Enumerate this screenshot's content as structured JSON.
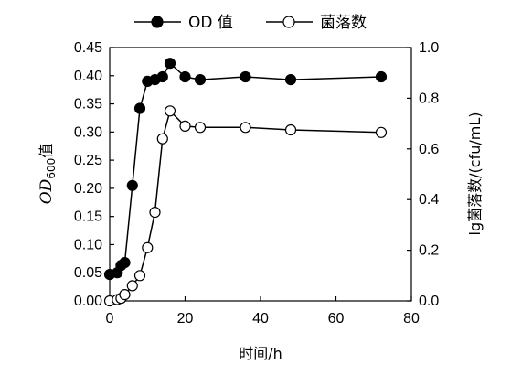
{
  "chart_data": {
    "type": "line",
    "xlabel": "时间/h",
    "ylabel_left": {
      "main": "OD",
      "sub": "600",
      "suffix": "值"
    },
    "ylabel_right": "lg菌落数/(cfu/mL)",
    "xlim": [
      0,
      80
    ],
    "x_ticks": [
      "0",
      "20",
      "40",
      "60",
      "80"
    ],
    "ylim_left": [
      0,
      0.45
    ],
    "y_ticks_left": [
      "0.00",
      "0.05",
      "0.10",
      "0.15",
      "0.20",
      "0.25",
      "0.30",
      "0.35",
      "0.40",
      "0.45"
    ],
    "ylim_right": [
      0,
      1.0
    ],
    "y_ticks_right": [
      "0.0",
      "0.2",
      "0.4",
      "0.6",
      "0.8",
      "1.0"
    ],
    "grid": false,
    "legend_position": "top-center",
    "series": [
      {
        "name": "OD 值",
        "axis": "left",
        "marker": "filled-circle",
        "x": [
          0,
          2,
          3,
          4,
          6,
          8,
          10,
          12,
          14,
          16,
          20,
          24,
          36,
          48,
          72
        ],
        "y": [
          0.047,
          0.05,
          0.063,
          0.068,
          0.205,
          0.342,
          0.39,
          0.393,
          0.398,
          0.422,
          0.398,
          0.393,
          0.398,
          0.393,
          0.398
        ]
      },
      {
        "name": "菌落数",
        "axis": "right",
        "marker": "open-circle",
        "x": [
          0,
          2,
          3,
          4,
          6,
          8,
          10,
          12,
          14,
          16,
          20,
          24,
          36,
          48,
          72
        ],
        "y": [
          0.0,
          0.005,
          0.01,
          0.025,
          0.06,
          0.1,
          0.21,
          0.35,
          0.64,
          0.75,
          0.69,
          0.685,
          0.685,
          0.675,
          0.665
        ]
      }
    ],
    "colors": {
      "line": "#000000",
      "marker_fill_filled": "#000000",
      "marker_fill_open": "#ffffff"
    }
  }
}
